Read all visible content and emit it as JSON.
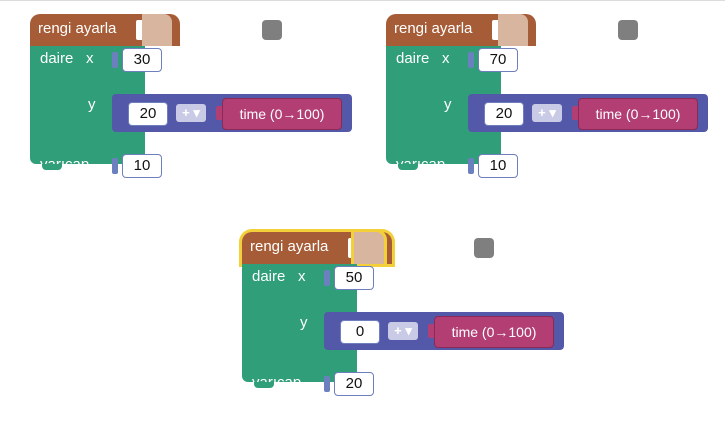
{
  "blocks": [
    {
      "hat_label": "rengi ayarla",
      "circle_label": "daire",
      "x_label": "x",
      "x_value": "30",
      "y_label": "y",
      "y_left": "20",
      "op": "+",
      "time_label": "time (0→100)",
      "radius_label": "yarıçap",
      "radius_value": "10",
      "selected": false
    },
    {
      "hat_label": "rengi ayarla",
      "circle_label": "daire",
      "x_label": "x",
      "x_value": "70",
      "y_label": "y",
      "y_left": "20",
      "op": "+",
      "time_label": "time (0→100)",
      "radius_label": "yarıçap",
      "radius_value": "10",
      "selected": false
    },
    {
      "hat_label": "rengi ayarla",
      "circle_label": "daire",
      "x_label": "x",
      "x_value": "50",
      "y_label": "y",
      "y_left": "0",
      "op": "+",
      "time_label": "time (0→100)",
      "radius_label": "yarıçap",
      "radius_value": "20",
      "selected": true
    }
  ],
  "colors": {
    "hat": "#a65c37",
    "hat_ext": "#d8b59f",
    "circle_block": "#2f9e79",
    "op_block": "#5358a8",
    "time_block": "#b23e74",
    "selected_glow": "#f3d03a"
  },
  "icons": {
    "dropdown": "chevron-down-icon"
  }
}
